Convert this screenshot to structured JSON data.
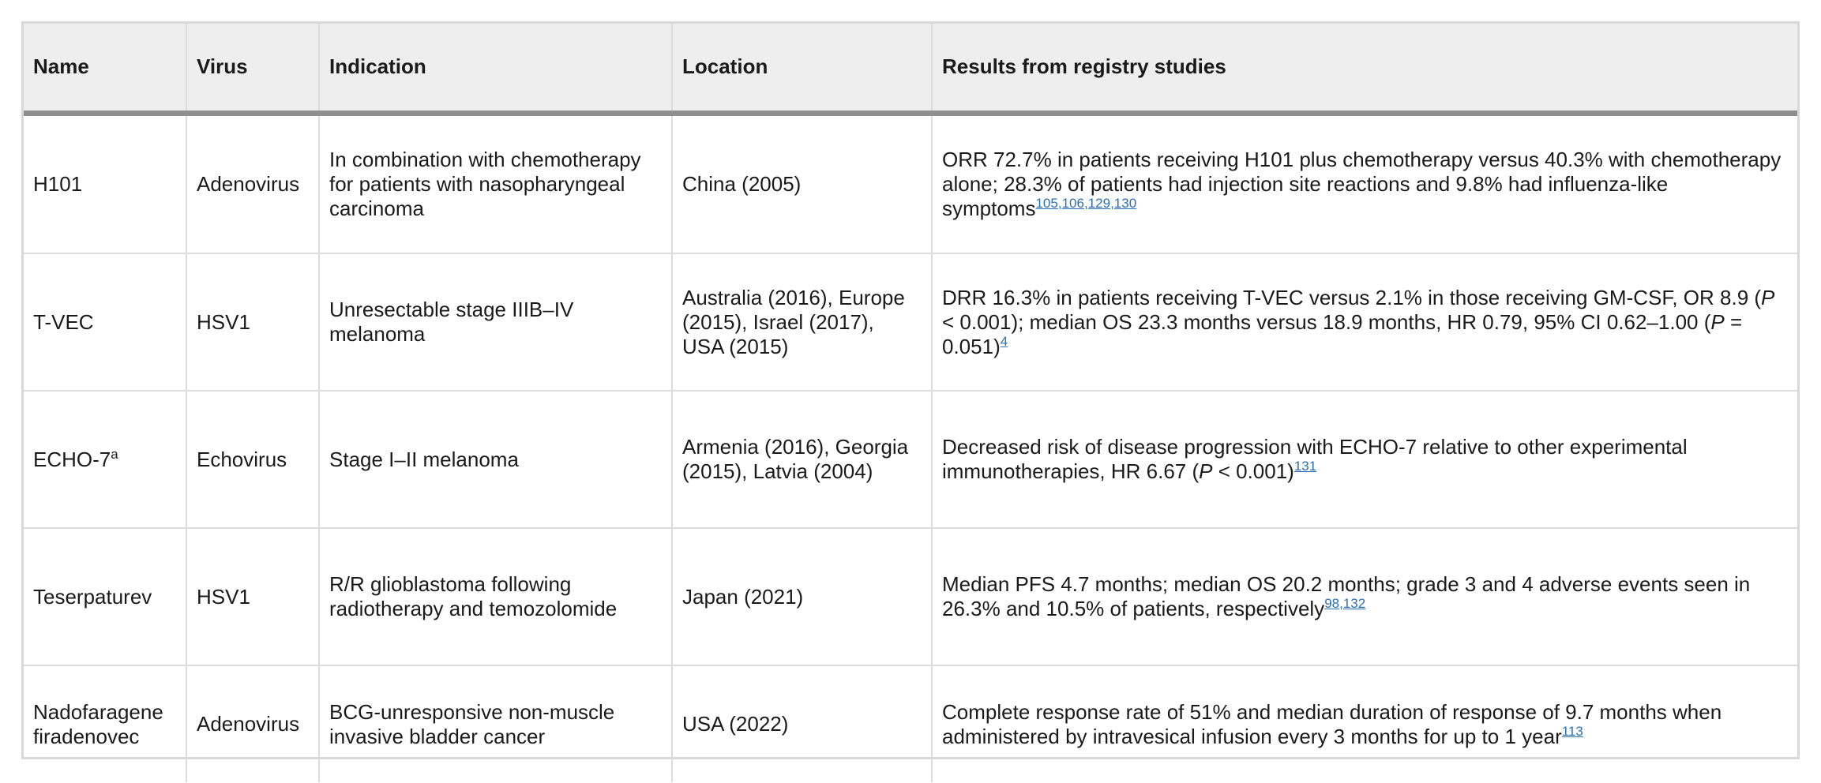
{
  "headers": [
    "Name",
    "Virus",
    "Indication",
    "Location",
    "Results from registry studies"
  ],
  "rows": [
    {
      "name": "H101",
      "virus": "Adenovirus",
      "indication": "In combination with chemotherapy for patients with nasopharyngeal carcinoma",
      "location": "China (2005)",
      "results": "ORR 72.7% in patients receiving H101 plus chemotherapy versus 40.3% with chemotherapy alone; 28.3% of patients had injection site reactions and 9.8% had influenza-like symptoms",
      "refs": [
        "105",
        "106",
        "129",
        "130"
      ]
    },
    {
      "name": "T-VEC",
      "virus": "HSV1",
      "indication": "Unresectable stage IIIB–IV melanoma",
      "location": "Australia (2016), Europe (2015), Israel (2017), USA (2015)",
      "results_a": "DRR 16.3% in patients receiving T-VEC versus 2.1% in those receiving GM-CSF, OR 8.9 (",
      "results_b": " < 0.001); median OS 23.3 months versus 18.9 months, HR 0.79, 95% CI 0.62–1.00 (",
      "results_c": " = 0.051)",
      "p_label": "P",
      "refs": [
        "4"
      ]
    },
    {
      "name": "ECHO-7",
      "name_sup": "a",
      "virus": "Echovirus",
      "indication": "Stage I–II melanoma",
      "location": "Armenia (2016), Georgia (2015), Latvia (2004)",
      "results_a": "Decreased risk of disease progression with ECHO-7 relative to other experimental immunotherapies, HR 6.67 (",
      "results_b": " < 0.001)",
      "p_label": "P",
      "refs": [
        "131"
      ]
    },
    {
      "name": "Teserpaturev",
      "virus": "HSV1",
      "indication": "R/R glioblastoma following radiotherapy and temozolomide",
      "location": "Japan (2021)",
      "results": "Median PFS 4.7 months; median OS 20.2 months; grade 3 and 4 adverse events seen in 26.3% and 10.5% of patients, respectively",
      "refs": [
        "98",
        "132"
      ]
    },
    {
      "name": "Nadofaragene firadenovec",
      "virus": "Adenovirus",
      "indication": "BCG-unresponsive non-muscle invasive bladder cancer",
      "location": "USA (2022)",
      "results": "Complete response rate of 51% and median duration of response of 9.7 months when administered by intravesical infusion every 3 months for up to 1 year",
      "refs": [
        "113"
      ]
    }
  ],
  "colors": {
    "header_bg": "#eeeeee",
    "header_rule": "#8e8e8e",
    "link": "#2a6fb5",
    "grid": "#dcdcdc"
  }
}
